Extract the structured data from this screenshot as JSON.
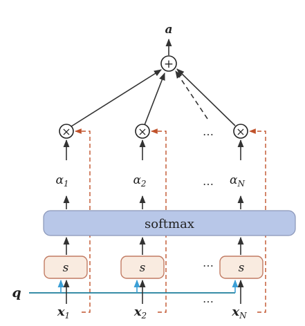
{
  "output_label": "a",
  "sum_symbol": "+",
  "mult_symbol": "×",
  "query_label": "q",
  "softmax_label": "softmax",
  "score_label": "s",
  "weights": [
    {
      "alpha": "α",
      "sub": "1"
    },
    {
      "alpha": "α",
      "sub": "2"
    },
    {
      "alpha": "α",
      "sub": "N"
    }
  ],
  "inputs": [
    {
      "x": "x",
      "sub": "1"
    },
    {
      "x": "x",
      "sub": "2"
    },
    {
      "x": "x",
      "sub": "N"
    }
  ],
  "ellipsis": "…",
  "colors": {
    "arrow": "#333333",
    "query_line": "#1a7c9a",
    "query_arrow": "#3b9fd6",
    "dashed_value": "#c0522b",
    "softmax_fill": "#b8c7e8",
    "softmax_stroke": "#8a96b8",
    "score_fill": "#f9ebe0",
    "score_stroke": "#c17a62"
  }
}
